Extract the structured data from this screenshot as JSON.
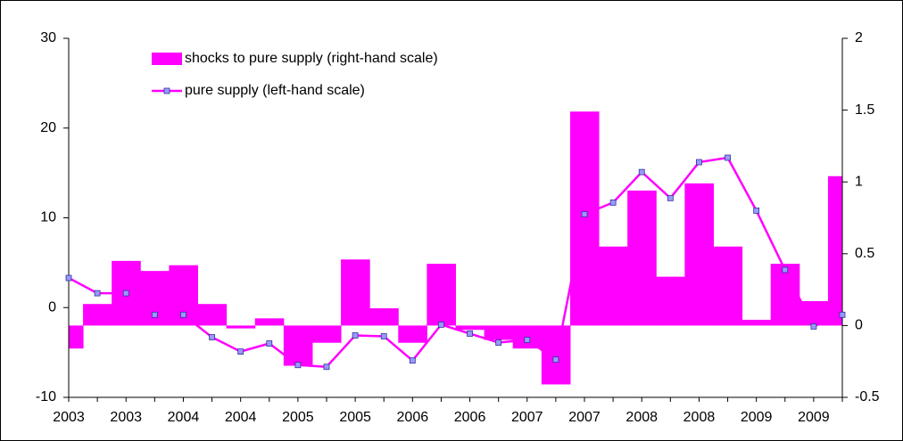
{
  "chart_data": {
    "type": "combo",
    "categories": [
      "2003",
      null,
      "2003",
      null,
      "2004",
      null,
      "2004",
      null,
      "2005",
      null,
      "2005",
      null,
      "2006",
      null,
      "2006",
      null,
      "2007",
      null,
      "2007",
      null,
      "2008",
      null,
      "2008",
      null,
      "2009",
      null,
      "2009",
      null
    ],
    "series": [
      {
        "name": "shocks to pure supply (right-hand scale)",
        "type": "bar",
        "axis": "y2",
        "color": "#ff00ff",
        "values": [
          -0.16,
          0.15,
          0.45,
          0.38,
          0.42,
          0.15,
          -0.02,
          0.05,
          -0.28,
          -0.12,
          0.46,
          0.12,
          -0.12,
          0.43,
          -0.03,
          -0.1,
          -0.16,
          -0.41,
          1.49,
          0.55,
          0.94,
          0.34,
          0.99,
          0.55,
          0.04,
          0.43,
          0.17,
          1.04
        ]
      },
      {
        "name": "pure supply (left-hand scale)",
        "type": "line",
        "axis": "y",
        "color": "#ff00ff",
        "marker_color": "#9999ff",
        "values": [
          3.3,
          1.6,
          1.6,
          -0.8,
          -0.8,
          -3.3,
          -4.9,
          -4.0,
          -6.4,
          -6.6,
          -3.1,
          -3.2,
          -5.9,
          -1.9,
          -2.9,
          -3.9,
          -3.6,
          -5.8,
          10.4,
          11.7,
          15.1,
          12.2,
          16.2,
          16.7,
          10.8,
          4.2,
          -2.1,
          -0.8
        ]
      }
    ],
    "ylim": [
      -10,
      30
    ],
    "yticks": [
      -10,
      0,
      10,
      20,
      30
    ],
    "y2lim": [
      -0.5,
      2
    ],
    "y2ticks": [
      -0.5,
      0,
      0.5,
      1,
      1.5,
      2
    ],
    "legend": "top-left"
  }
}
